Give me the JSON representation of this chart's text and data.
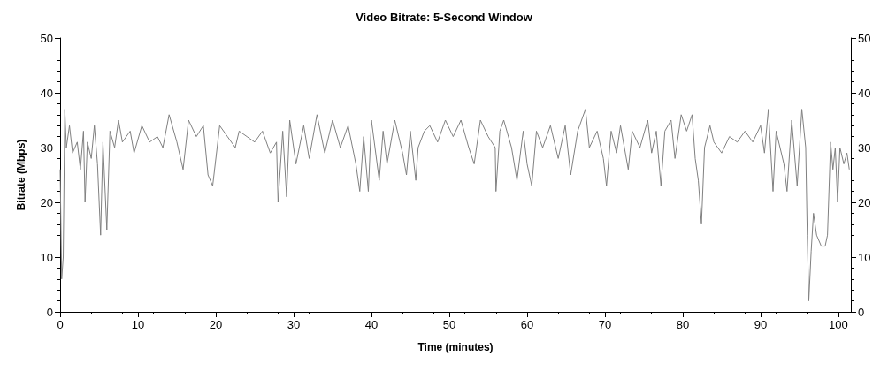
{
  "chart_data": {
    "type": "line",
    "title": "Video Bitrate: 5-Second Window",
    "xlabel": "Time (minutes)",
    "ylabel": "Bitrate (Mbps)",
    "x": [
      0,
      0.2,
      0.4,
      0.6,
      0.8,
      1.2,
      1.6,
      2.2,
      2.6,
      3.0,
      3.2,
      3.5,
      4.0,
      4.4,
      4.8,
      5.2,
      5.5,
      6.0,
      6.4,
      7,
      7.5,
      8,
      9,
      9.5,
      10.5,
      11.5,
      12.5,
      13.2,
      14,
      15,
      15.8,
      16.5,
      17.5,
      18.4,
      19,
      19.6,
      20.5,
      21.5,
      22.5,
      23,
      24,
      25,
      26,
      27,
      27.8,
      28,
      28.6,
      29.1,
      29.5,
      30.3,
      31.3,
      32,
      33,
      34,
      35,
      36,
      37,
      38,
      38.5,
      39,
      39.6,
      40,
      41,
      41.5,
      42,
      43,
      44,
      44.5,
      45,
      45.7,
      46,
      46.8,
      47.5,
      48.5,
      49.5,
      50.5,
      51.5,
      52.5,
      53.2,
      54,
      55,
      55.9,
      56,
      56.5,
      57,
      58,
      58.7,
      59.5,
      60,
      60.6,
      61.2,
      62,
      63,
      64,
      64.9,
      65.6,
      66.5,
      67.5,
      68,
      69,
      69.8,
      70.2,
      70.8,
      71.5,
      72,
      73,
      73.5,
      74.5,
      75.5,
      76,
      76.6,
      77.2,
      77.7,
      78.5,
      79,
      79.8,
      80.5,
      81.2,
      81.6,
      82,
      82.4,
      82.8,
      83.5,
      84,
      85,
      86,
      87,
      88,
      89,
      90,
      90.5,
      91,
      91.6,
      92,
      93,
      93.4,
      94,
      94.7,
      95.3,
      95.8,
      96,
      96.2,
      96.5,
      96.8,
      97.2,
      97.8,
      98.3,
      98.6,
      99,
      99.3,
      99.6,
      99.9,
      100.2,
      100.7,
      101.1,
      101.4
    ],
    "series": [
      {
        "color": "#808080",
        "values": [
          26,
          6,
          10,
          37,
          30,
          34,
          29,
          31,
          26,
          33,
          20,
          31,
          28,
          34,
          27,
          14,
          31,
          15,
          33,
          30,
          35,
          31,
          33,
          29,
          34,
          31,
          32,
          30,
          36,
          31,
          26,
          35,
          32,
          34,
          25,
          23,
          34,
          32,
          30,
          33,
          32,
          31,
          33,
          29,
          31,
          20,
          33,
          21,
          35,
          27,
          34,
          28,
          36,
          29,
          35,
          30,
          34,
          27,
          22,
          32,
          22,
          35,
          24,
          33,
          27,
          35,
          29,
          25,
          33,
          24,
          30,
          33,
          34,
          31,
          35,
          32,
          35,
          30,
          27,
          35,
          32,
          30,
          22,
          33,
          35,
          30,
          24,
          33,
          27,
          23,
          33,
          30,
          34,
          28,
          34,
          25,
          33,
          37,
          30,
          33,
          28,
          23,
          33,
          29,
          34,
          26,
          33,
          30,
          35,
          29,
          33,
          23,
          33,
          35,
          28,
          36,
          33,
          36,
          28,
          24,
          16,
          30,
          34,
          31,
          29,
          32,
          31,
          33,
          31,
          34,
          29,
          37,
          22,
          33,
          27,
          22,
          35,
          23,
          37,
          30,
          14,
          2,
          11,
          18,
          14,
          12,
          12,
          14,
          31,
          26,
          30,
          20,
          30,
          27,
          29,
          26
        ]
      }
    ],
    "xlim": [
      0,
      101.6
    ],
    "xticks": [
      0,
      10,
      20,
      30,
      40,
      50,
      60,
      70,
      80,
      90,
      100
    ],
    "ylim": [
      0,
      50
    ],
    "yticks": [
      0,
      10,
      20,
      30,
      40,
      50
    ],
    "y2lim": [
      0,
      50
    ],
    "y2ticks": [
      0,
      10,
      20,
      30,
      40,
      50
    ],
    "marker": "none",
    "line_style": "solid"
  }
}
